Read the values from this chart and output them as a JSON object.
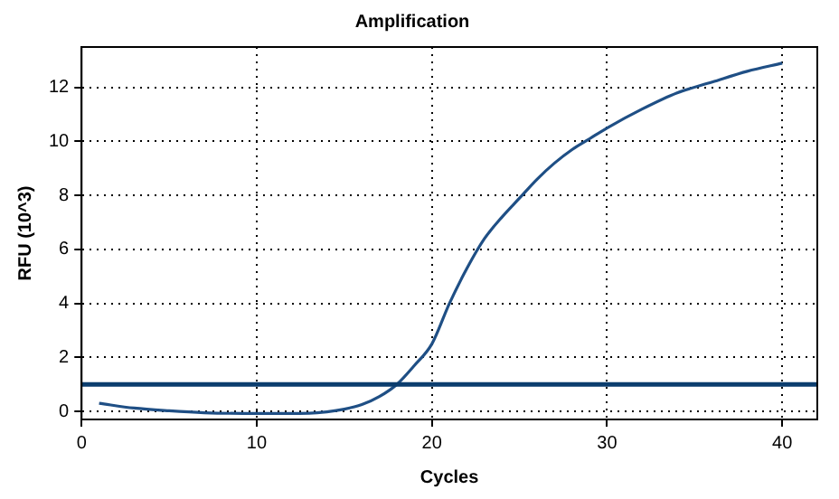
{
  "chart_data": {
    "type": "line",
    "title": "Amplification",
    "xlabel": "Cycles",
    "ylabel": "RFU (10^3)",
    "xlim": [
      0,
      42
    ],
    "xticks": [
      0,
      10,
      20,
      30,
      40
    ],
    "ylim": [
      -0.3,
      13.5
    ],
    "yticks": [
      0,
      2,
      4,
      6,
      8,
      10,
      12
    ],
    "grid": true,
    "line_style": "solid",
    "marker": "none",
    "series": [
      {
        "color": "#1f4f85",
        "x": [
          1,
          3,
          5,
          7,
          10,
          13,
          14,
          15,
          16,
          17,
          18,
          19,
          20,
          21,
          22,
          23,
          24,
          25,
          26,
          27,
          28,
          29,
          30,
          32,
          34,
          36,
          38,
          40
        ],
        "values": [
          0.3,
          0.12,
          0.02,
          -0.05,
          -0.08,
          -0.07,
          -0.02,
          0.08,
          0.25,
          0.55,
          1.0,
          1.7,
          2.5,
          4.0,
          5.3,
          6.4,
          7.2,
          7.9,
          8.6,
          9.2,
          9.7,
          10.1,
          10.5,
          11.2,
          11.8,
          12.2,
          12.6,
          12.9
        ]
      }
    ],
    "ref_lines": [
      {
        "axis": "y",
        "value": 1,
        "color": "#0b3d6e"
      }
    ]
  }
}
